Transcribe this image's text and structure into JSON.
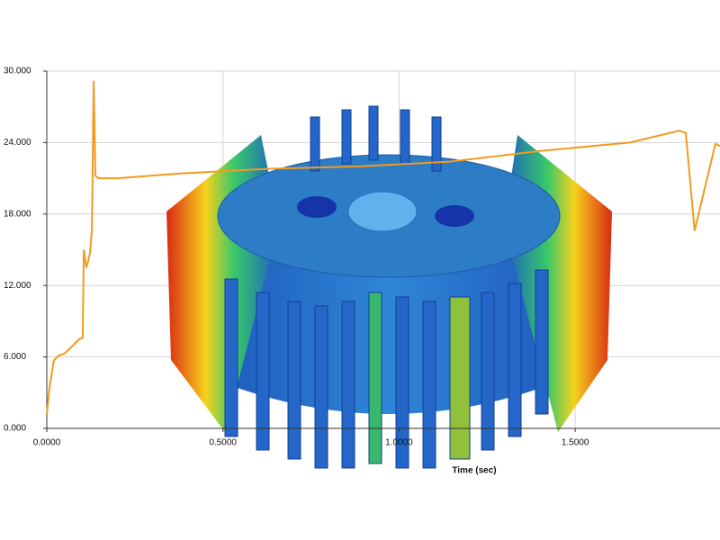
{
  "chart_data": {
    "type": "line",
    "x_label": "Time (sec)",
    "x": [
      0,
      0.008,
      0.02,
      0.033,
      0.051,
      0.072,
      0.092,
      0.102,
      0.105,
      0.112,
      0.118,
      0.123,
      0.128,
      0.133,
      0.138,
      0.148,
      0.2,
      0.378,
      0.633,
      0.889,
      1.144,
      1.4,
      1.655,
      1.796,
      1.814,
      1.839,
      1.898,
      1.911
    ],
    "values": [
      1.2,
      3.5,
      5.7,
      6.1,
      6.3,
      6.9,
      7.5,
      7.6,
      15.0,
      13.5,
      14.1,
      14.8,
      16.7,
      29.2,
      21.2,
      21.0,
      21.0,
      21.4,
      21.8,
      22.0,
      22.4,
      23.3,
      24.0,
      25.0,
      24.8,
      16.6,
      23.9,
      23.7
    ],
    "color": "#f39a1e",
    "xlim": [
      0,
      1.911
    ],
    "ylim": [
      0,
      30
    ],
    "xticks": [
      {
        "value": 0,
        "label": "0.0000"
      },
      {
        "value": 0.5,
        "label": "0.5000"
      },
      {
        "value": 1,
        "label": "1.0000"
      },
      {
        "value": 1.5,
        "label": "1.5000"
      }
    ],
    "yticks": [
      {
        "value": 0,
        "label": "0.000"
      },
      {
        "value": 6,
        "label": "6.000"
      },
      {
        "value": 12,
        "label": "12.000"
      },
      {
        "value": 18,
        "label": "18.000"
      },
      {
        "value": 24,
        "label": "24.000"
      },
      {
        "value": 30,
        "label": "30.000"
      }
    ],
    "grid": true
  }
}
